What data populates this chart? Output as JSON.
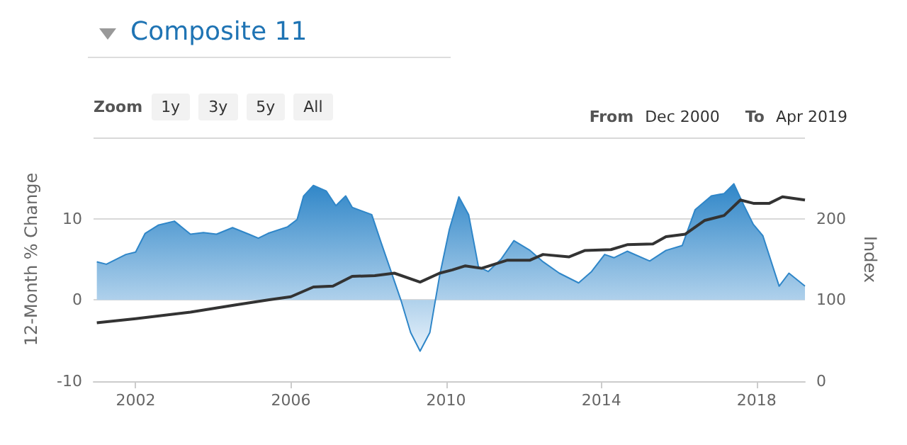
{
  "chart_data": {
    "type": "area",
    "title": "Composite 11",
    "ylabel": "12-Month % Change",
    "y2label": "Index",
    "annotations": [
      "Zoom",
      "1y",
      "3y",
      "5y",
      "All",
      "From",
      "Dec 2000",
      "To",
      "Apr 2019"
    ],
    "xlim": [
      "2000-12",
      "2019-04"
    ],
    "xticks": [
      "2002",
      "2006",
      "2010",
      "2014",
      "2018"
    ],
    "ylim": [
      -10,
      20
    ],
    "yticks": [
      -10,
      0,
      10,
      {
        "value": 20,
        "label": null
      }
    ],
    "y2lim": [
      0,
      300
    ],
    "y2ticks": [
      0,
      100,
      200
    ],
    "grid": "y",
    "series": [
      {
        "color": "#2f86c8",
        "x": [
          "2001-01",
          "2001-04",
          "2001-10",
          "2002-01",
          "2002-04",
          "2002-08",
          "2003-01",
          "2003-06",
          "2003-10",
          "2004-02",
          "2004-07",
          "2004-12",
          "2005-03",
          "2005-06",
          "2005-12",
          "2006-03",
          "2006-05",
          "2006-08",
          "2006-12",
          "2007-03",
          "2007-06",
          "2007-08",
          "2008-02",
          "2008-05",
          "2008-08",
          "2008-11",
          "2009-02",
          "2009-05",
          "2009-08",
          "2009-11",
          "2010-02",
          "2010-05",
          "2010-08",
          "2010-11",
          "2011-02",
          "2011-06",
          "2011-10",
          "2012-03",
          "2012-07",
          "2012-12",
          "2013-06",
          "2013-10",
          "2014-02",
          "2014-05",
          "2014-09",
          "2015-04",
          "2015-09",
          "2016-02",
          "2016-06",
          "2016-11",
          "2017-03",
          "2017-06",
          "2017-09",
          "2017-12",
          "2018-03",
          "2018-08",
          "2018-11",
          "2019-04"
        ],
        "values": [
          4.7,
          4.4,
          5.6,
          5.9,
          8.2,
          9.2,
          9.7,
          8.1,
          8.3,
          8.1,
          8.9,
          8.1,
          7.6,
          8.2,
          9.0,
          9.9,
          12.8,
          14.1,
          13.4,
          11.6,
          12.8,
          11.4,
          10.5,
          7.0,
          3.5,
          0,
          -4.0,
          -6.3,
          -4.0,
          3.0,
          8.7,
          12.7,
          10.5,
          4.1,
          3.5,
          5.0,
          7.3,
          6.1,
          4.7,
          3.3,
          2.1,
          3.5,
          5.6,
          5.2,
          6.0,
          4.8,
          6.1,
          6.7,
          11.1,
          12.8,
          13.1,
          14.3,
          11.7,
          9.3,
          7.9,
          1.7,
          3.3,
          1.7
        ]
      },
      {
        "type": "line",
        "axis": "y2",
        "color": "#333333",
        "x": [
          "2001-01",
          "2002-01",
          "2003-06",
          "2004-08",
          "2005-06",
          "2006-01",
          "2006-08",
          "2007-02",
          "2007-08",
          "2008-03",
          "2008-09",
          "2009-05",
          "2009-11",
          "2010-03",
          "2010-07",
          "2010-12",
          "2011-08",
          "2012-03",
          "2012-07",
          "2013-03",
          "2013-08",
          "2014-04",
          "2014-09",
          "2015-05",
          "2015-09",
          "2016-03",
          "2016-09",
          "2017-03",
          "2017-08",
          "2017-12",
          "2018-05",
          "2018-09",
          "2019-04"
        ],
        "values": [
          72,
          77,
          85,
          94,
          100,
          104,
          116,
          117,
          129,
          130,
          133,
          122,
          133,
          137,
          142,
          139,
          149,
          149,
          156,
          153,
          161,
          162,
          168,
          169,
          178,
          181,
          198,
          204,
          223,
          219,
          219,
          227,
          223
        ]
      }
    ]
  }
}
